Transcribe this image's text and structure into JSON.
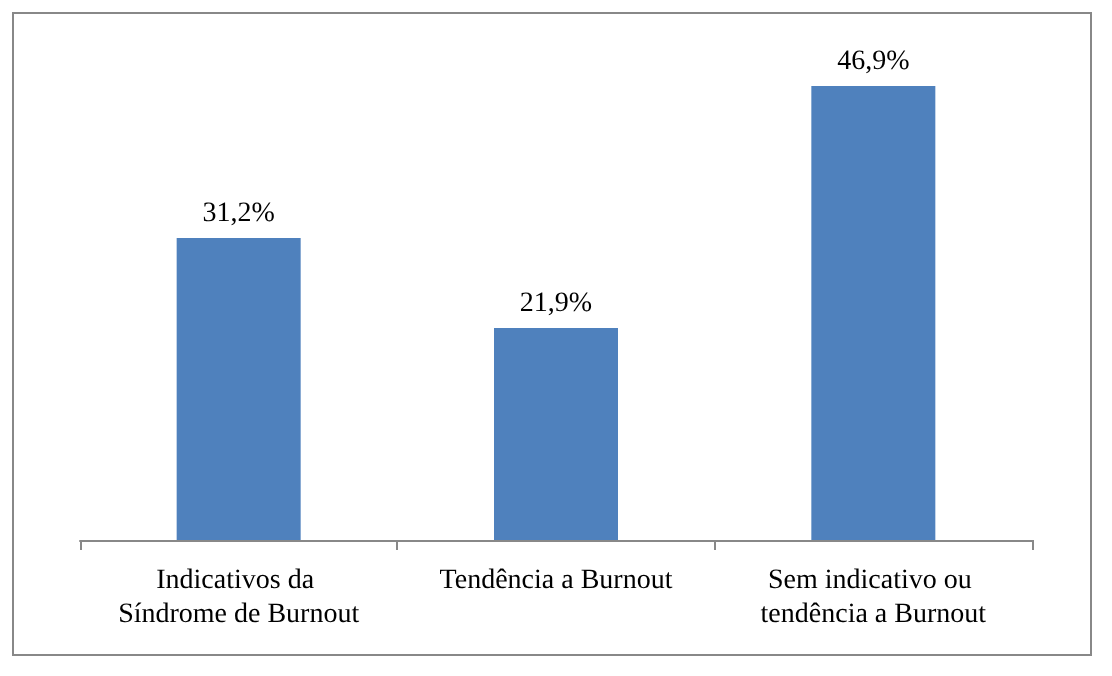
{
  "chart_data": {
    "type": "bar",
    "categories": [
      "Indicativos da Síndrome de Burnout",
      "Tendência a Burnout",
      "Sem indicativo ou tendência a Burnout"
    ],
    "values": [
      31.2,
      21.9,
      46.9
    ],
    "value_labels": [
      "31,2%",
      "21,9%",
      "46,9%"
    ],
    "color": "#4f81bd"
  }
}
